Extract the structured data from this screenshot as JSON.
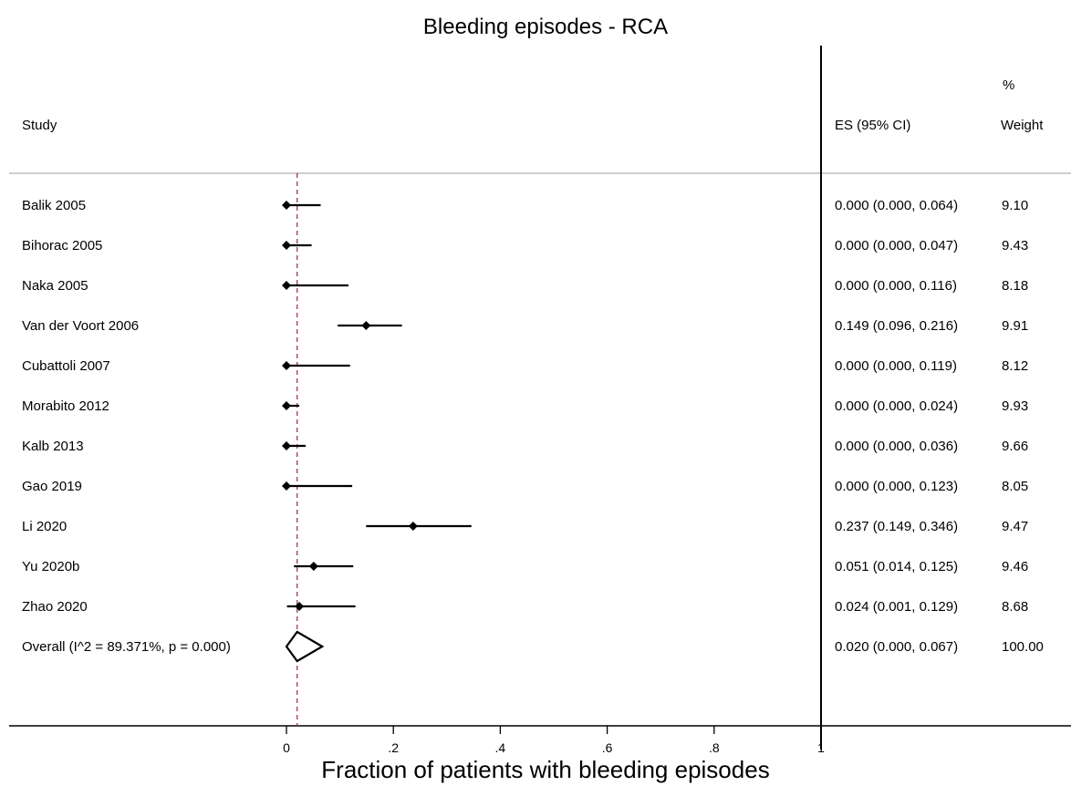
{
  "chart_data": {
    "type": "forest",
    "title": "Bleeding episodes - RCA",
    "xlabel": "Fraction of patients with bleeding episodes",
    "xlim": [
      0,
      1
    ],
    "xticks": [
      "0",
      ".2",
      ".4",
      ".6",
      ".8",
      "1"
    ],
    "xtick_values": [
      0,
      0.2,
      0.4,
      0.6,
      0.8,
      1
    ],
    "reference_line": 0.02,
    "headers": {
      "study": "Study",
      "es": "ES (95% CI)",
      "weight_top": "%",
      "weight": "Weight"
    },
    "studies": [
      {
        "name": "Balik 2005",
        "es": 0.0,
        "lo": 0.0,
        "hi": 0.064,
        "es_text": "0.000 (0.000, 0.064)",
        "weight": "9.10"
      },
      {
        "name": "Bihorac 2005",
        "es": 0.0,
        "lo": 0.0,
        "hi": 0.047,
        "es_text": "0.000 (0.000, 0.047)",
        "weight": "9.43"
      },
      {
        "name": "Naka 2005",
        "es": 0.0,
        "lo": 0.0,
        "hi": 0.116,
        "es_text": "0.000 (0.000, 0.116)",
        "weight": "8.18"
      },
      {
        "name": "Van der Voort 2006",
        "es": 0.149,
        "lo": 0.096,
        "hi": 0.216,
        "es_text": "0.149 (0.096, 0.216)",
        "weight": "9.91"
      },
      {
        "name": "Cubattoli 2007",
        "es": 0.0,
        "lo": 0.0,
        "hi": 0.119,
        "es_text": "0.000 (0.000, 0.119)",
        "weight": "8.12"
      },
      {
        "name": "Morabito 2012",
        "es": 0.0,
        "lo": 0.0,
        "hi": 0.024,
        "es_text": "0.000 (0.000, 0.024)",
        "weight": "9.93"
      },
      {
        "name": "Kalb 2013",
        "es": 0.0,
        "lo": 0.0,
        "hi": 0.036,
        "es_text": "0.000 (0.000, 0.036)",
        "weight": "9.66"
      },
      {
        "name": "Gao 2019",
        "es": 0.0,
        "lo": 0.0,
        "hi": 0.123,
        "es_text": "0.000 (0.000, 0.123)",
        "weight": "8.05"
      },
      {
        "name": "Li 2020",
        "es": 0.237,
        "lo": 0.149,
        "hi": 0.346,
        "es_text": "0.237 (0.149, 0.346)",
        "weight": "9.47"
      },
      {
        "name": "Yu 2020b",
        "es": 0.051,
        "lo": 0.014,
        "hi": 0.125,
        "es_text": "0.051 (0.014, 0.125)",
        "weight": "9.46"
      },
      {
        "name": "Zhao 2020",
        "es": 0.024,
        "lo": 0.001,
        "hi": 0.129,
        "es_text": "0.024 (0.001, 0.129)",
        "weight": "8.68"
      }
    ],
    "overall": {
      "name": "Overall  (I^2 = 89.371%, p = 0.000)",
      "es": 0.02,
      "lo": 0.0,
      "hi": 0.067,
      "es_text": "0.020 (0.000, 0.067)",
      "weight": "100.00"
    }
  }
}
